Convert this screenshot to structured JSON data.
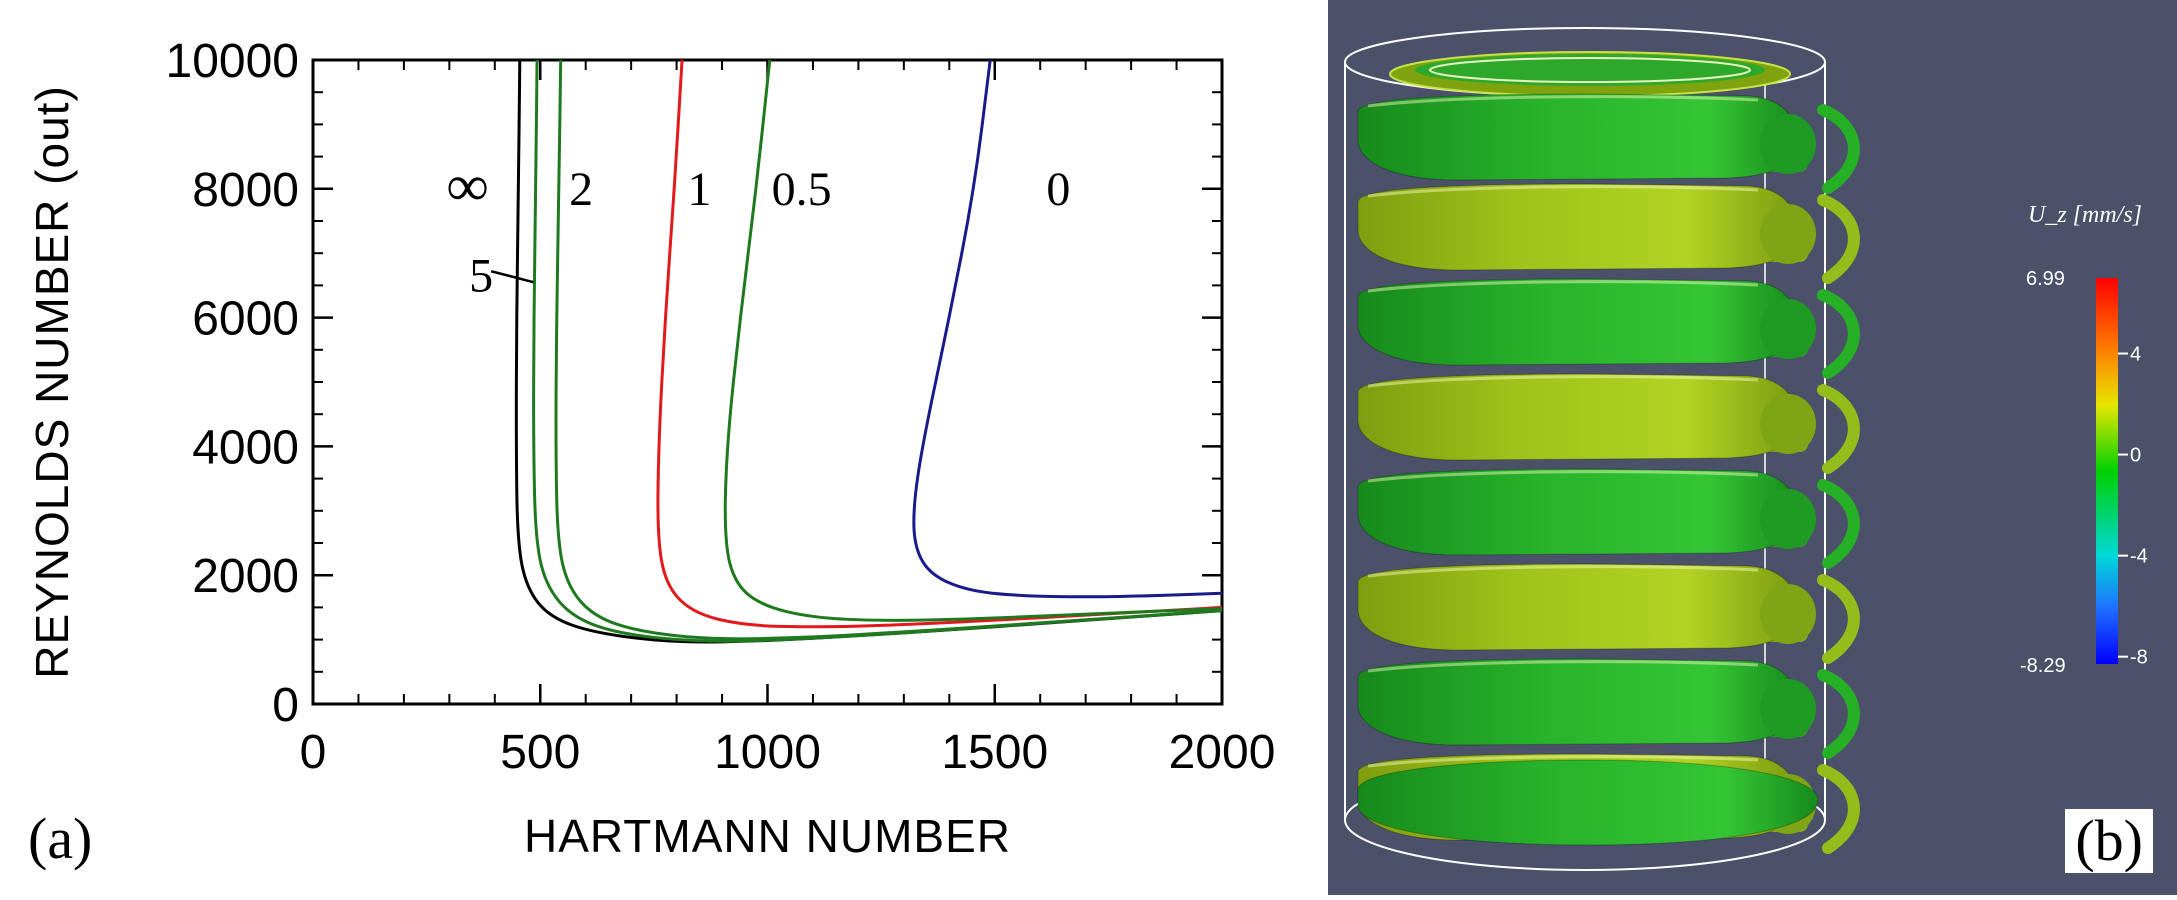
{
  "chart_data": {
    "type": "line",
    "xlabel": "HARTMANN NUMBER",
    "ylabel": "REYNOLDS NUMBER (out)",
    "xlim": [
      0,
      2000
    ],
    "ylim": [
      0,
      10000
    ],
    "xticks": [
      "0",
      "500",
      "1000",
      "1500",
      "2000"
    ],
    "yticks": [
      "0",
      "2000",
      "4000",
      "6000",
      "8000",
      "10000"
    ],
    "grid": false,
    "legend": "none",
    "series": [
      {
        "name": "∞",
        "color": "#000000",
        "points": [
          [
            455,
            10000
          ],
          [
            452,
            8000
          ],
          [
            448,
            6000
          ],
          [
            447,
            4000
          ],
          [
            450,
            2500
          ],
          [
            470,
            1800
          ],
          [
            520,
            1350
          ],
          [
            620,
            1100
          ],
          [
            800,
            950
          ],
          [
            1000,
            980
          ],
          [
            1200,
            1060
          ],
          [
            1400,
            1150
          ],
          [
            1600,
            1250
          ],
          [
            1800,
            1350
          ],
          [
            2000,
            1450
          ]
        ]
      },
      {
        "name": "5",
        "color": "#1f7a1f",
        "points": [
          [
            493,
            10000
          ],
          [
            490,
            8000
          ],
          [
            486,
            6000
          ],
          [
            485,
            4000
          ],
          [
            490,
            2500
          ],
          [
            515,
            1800
          ],
          [
            575,
            1330
          ],
          [
            680,
            1080
          ],
          [
            860,
            960
          ],
          [
            1050,
            1000
          ],
          [
            1250,
            1080
          ],
          [
            1450,
            1180
          ],
          [
            1650,
            1280
          ],
          [
            1850,
            1380
          ],
          [
            2000,
            1450
          ]
        ]
      },
      {
        "name": "2",
        "color": "#1f7a1f",
        "points": [
          [
            545,
            10000
          ],
          [
            541,
            8000
          ],
          [
            536,
            6000
          ],
          [
            534,
            4000
          ],
          [
            538,
            2500
          ],
          [
            562,
            1800
          ],
          [
            620,
            1350
          ],
          [
            720,
            1120
          ],
          [
            880,
            1000
          ],
          [
            1080,
            1030
          ],
          [
            1280,
            1110
          ],
          [
            1480,
            1200
          ],
          [
            1680,
            1300
          ],
          [
            1880,
            1390
          ],
          [
            2000,
            1460
          ]
        ]
      },
      {
        "name": "1",
        "color": "#e31a1c",
        "points": [
          [
            812,
            10000
          ],
          [
            795,
            8000
          ],
          [
            775,
            6000
          ],
          [
            760,
            4000
          ],
          [
            758,
            2500
          ],
          [
            780,
            1800
          ],
          [
            840,
            1400
          ],
          [
            950,
            1220
          ],
          [
            1100,
            1190
          ],
          [
            1300,
            1230
          ],
          [
            1500,
            1300
          ],
          [
            1700,
            1380
          ],
          [
            1900,
            1460
          ],
          [
            2000,
            1500
          ]
        ]
      },
      {
        "name": "0.5",
        "color": "#1f7a1f",
        "points": [
          [
            1005,
            10000
          ],
          [
            975,
            8000
          ],
          [
            940,
            6000
          ],
          [
            910,
            4000
          ],
          [
            905,
            2500
          ],
          [
            930,
            1850
          ],
          [
            990,
            1520
          ],
          [
            1100,
            1340
          ],
          [
            1250,
            1290
          ],
          [
            1450,
            1320
          ],
          [
            1650,
            1380
          ],
          [
            1850,
            1440
          ],
          [
            2000,
            1480
          ]
        ]
      },
      {
        "name": "0",
        "color": "#1a1a8a",
        "points": [
          [
            1490,
            10000
          ],
          [
            1455,
            8000
          ],
          [
            1400,
            6000
          ],
          [
            1340,
            4000
          ],
          [
            1320,
            3000
          ],
          [
            1325,
            2400
          ],
          [
            1360,
            2000
          ],
          [
            1440,
            1760
          ],
          [
            1550,
            1680
          ],
          [
            1700,
            1660
          ],
          [
            1850,
            1680
          ],
          [
            2000,
            1720
          ]
        ]
      }
    ],
    "annotations": [
      {
        "text": "∞",
        "x": 340,
        "y": 8000
      },
      {
        "text": "2",
        "x": 590,
        "y": 8000
      },
      {
        "text": "1",
        "x": 850,
        "y": 8000
      },
      {
        "text": "0.5",
        "x": 1075,
        "y": 8000
      },
      {
        "text": "0",
        "x": 1640,
        "y": 8000
      },
      {
        "text": "5",
        "x": 370,
        "y": 6650
      }
    ]
  },
  "panel_labels": {
    "a": "(a)",
    "b": "(b)"
  },
  "colorbar": {
    "title": "U_z [mm/s]",
    "max_label": "6.99",
    "min_label": "-8.29",
    "ticks": [
      "4",
      "0",
      "-4",
      "-8"
    ]
  }
}
